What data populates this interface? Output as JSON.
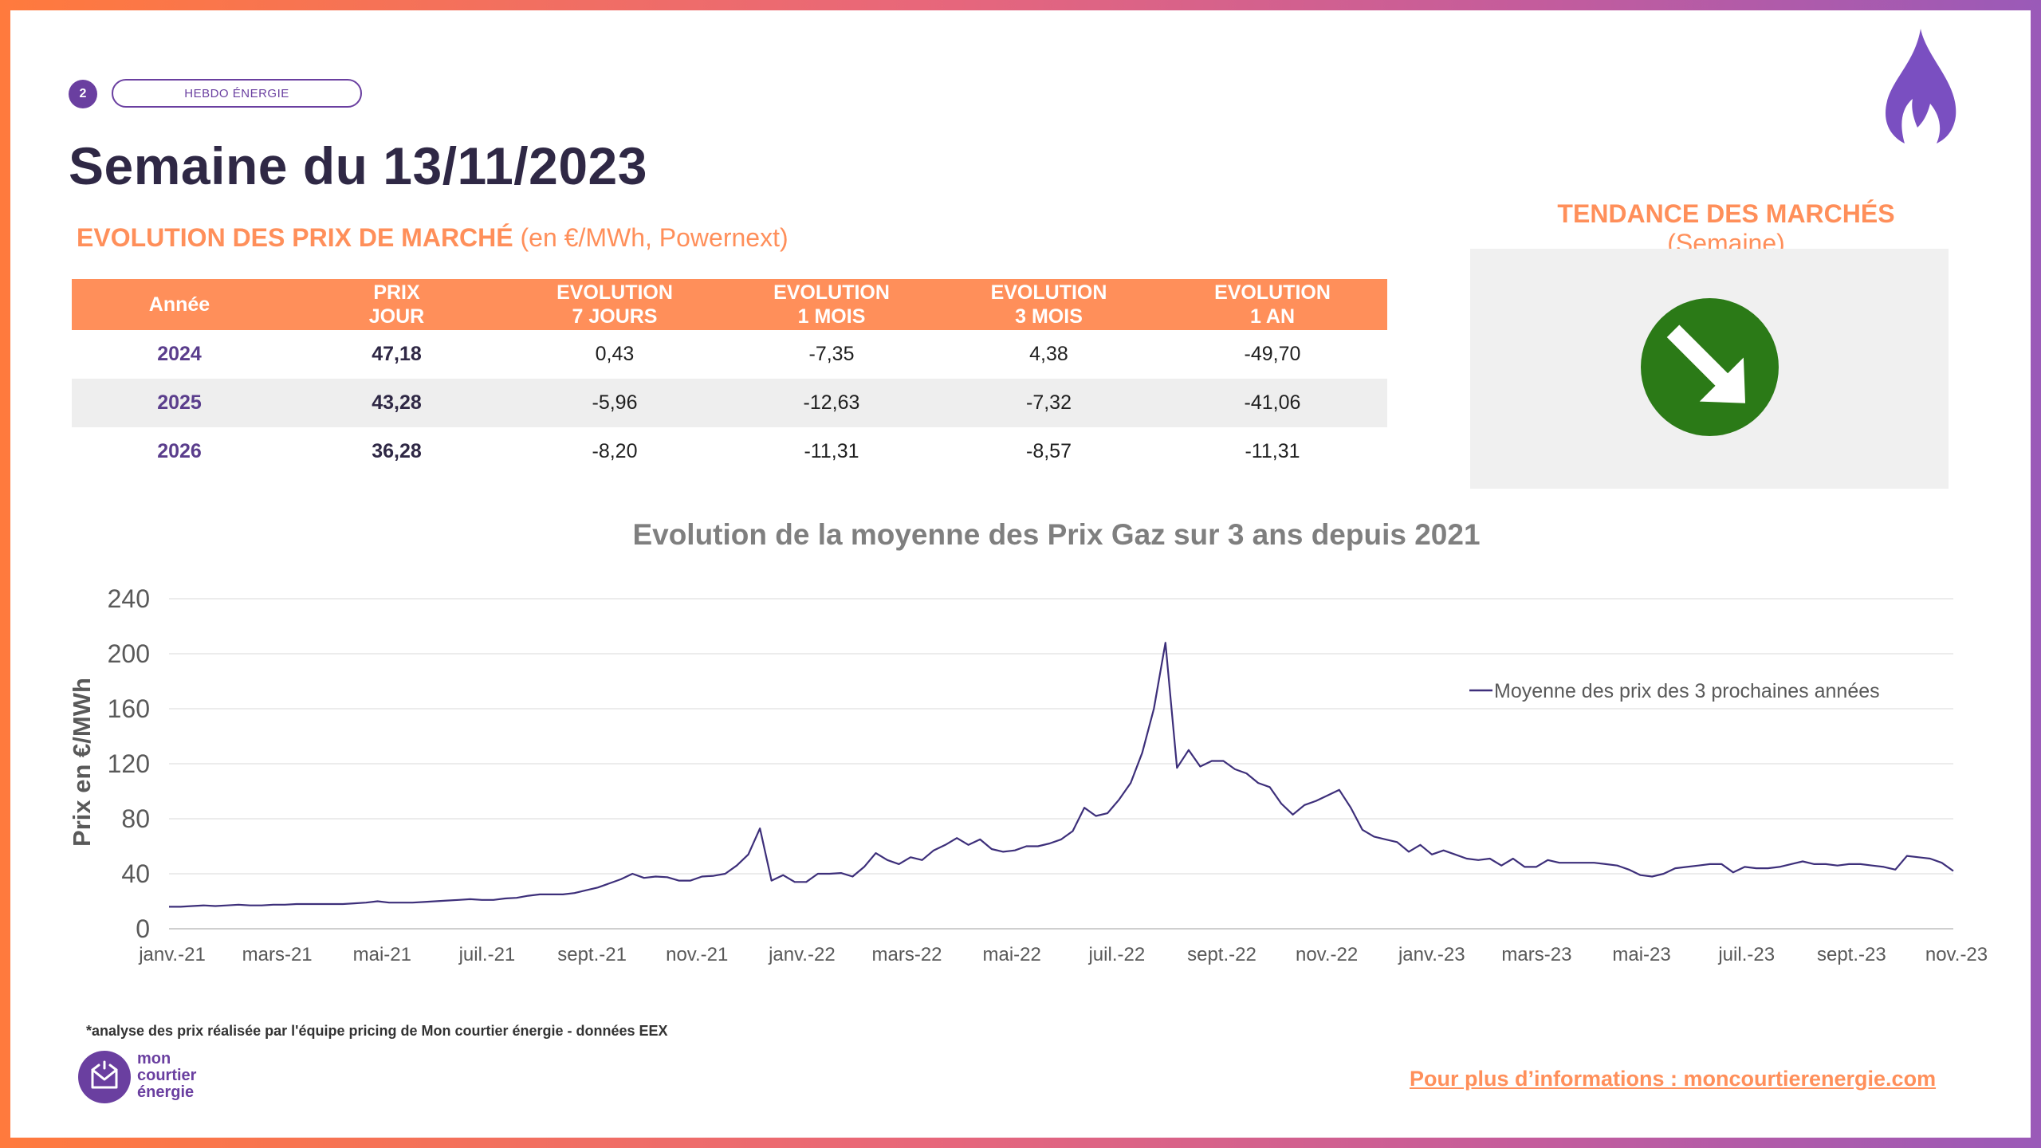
{
  "header": {
    "page_number": "2",
    "tag": "HEBDO ÉNERGIE",
    "title": "Semaine du 13/11/2023",
    "subtitle_strong": "EVOLUTION DES PRIX DE MARCHÉ",
    "subtitle_rest": " (en €/MWh, Powernext)"
  },
  "trend": {
    "title_strong": "TENDANCE DES MARCHÉS",
    "title_rest": " (Semaine)",
    "direction": "down",
    "color": "#2b7a17"
  },
  "table": {
    "headers": [
      "Année",
      "PRIX\nJOUR",
      "EVOLUTION\n7 JOURS",
      "EVOLUTION\n1 MOIS",
      "EVOLUTION\n3 MOIS",
      "EVOLUTION\n1 AN"
    ],
    "rows": [
      [
        "2024",
        "47,18",
        "0,43",
        "-7,35",
        "4,38",
        "-49,70"
      ],
      [
        "2025",
        "43,28",
        "-5,96",
        "-12,63",
        "-7,32",
        "-41,06"
      ],
      [
        "2026",
        "36,28",
        "-8,20",
        "-11,31",
        "-8,57",
        "-11,31"
      ]
    ]
  },
  "chart_data": {
    "type": "line",
    "title": "Evolution de la moyenne des Prix Gaz sur 3 ans depuis 2021",
    "xlabel": "",
    "ylabel": "Prix en €/MWh",
    "ylim": [
      0,
      240
    ],
    "yticks": [
      0,
      40,
      80,
      120,
      160,
      200,
      240
    ],
    "xticks": [
      "janv.-21",
      "mars-21",
      "mai-21",
      "juil.-21",
      "sept.-21",
      "nov.-21",
      "janv.-22",
      "mars-22",
      "mai-22",
      "juil.-22",
      "sept.-22",
      "nov.-22",
      "janv.-23",
      "mars-23",
      "mai-23",
      "juil.-23",
      "sept.-23",
      "nov.-23"
    ],
    "grid": true,
    "legend": "top-right",
    "color": "#3d2f7a",
    "series": [
      {
        "name": "Moyenne des prix des 3 prochaines années",
        "values": [
          16,
          16,
          16.5,
          17,
          16.5,
          17,
          17.5,
          17,
          17,
          17.5,
          17.5,
          18,
          18,
          18,
          18,
          18,
          18.5,
          19,
          20,
          19,
          19,
          19,
          19.5,
          20,
          20.5,
          21,
          21.5,
          21,
          21,
          22,
          22.5,
          24,
          25,
          25,
          25,
          26,
          28,
          30,
          33,
          36,
          40,
          37,
          38,
          37.5,
          35,
          35,
          38,
          38.5,
          40,
          46,
          54,
          73,
          35,
          39,
          34,
          34,
          40,
          40,
          40.5,
          38,
          45,
          55,
          50,
          47,
          52,
          50,
          57,
          61,
          66,
          61,
          65,
          58,
          56,
          57,
          60,
          60,
          62,
          65,
          71,
          88,
          82,
          84,
          94,
          106,
          128,
          160,
          208,
          117,
          130,
          118,
          122,
          122,
          116,
          113,
          106,
          103,
          91,
          83,
          90,
          93,
          97,
          101,
          88,
          72,
          67,
          65,
          63,
          56,
          61,
          54,
          57,
          54,
          51,
          50,
          51,
          46,
          51,
          45,
          45,
          50,
          48,
          48,
          48,
          48,
          47,
          46,
          43,
          39,
          38,
          40,
          44,
          45,
          46,
          47,
          47,
          41,
          45,
          44,
          44,
          45,
          47,
          49,
          47,
          47,
          46,
          47,
          47,
          46,
          45,
          43,
          53,
          52,
          51,
          48,
          42
        ]
      }
    ]
  },
  "footer": {
    "footnote": "*analyse des prix réalisée par l'équipe pricing de Mon courtier énergie -   données EEX",
    "logo_line1": "mon",
    "logo_line2": "courtier",
    "logo_line3": "énergie",
    "more_info": "Pour plus d’informations : moncourtierenergie.com"
  }
}
